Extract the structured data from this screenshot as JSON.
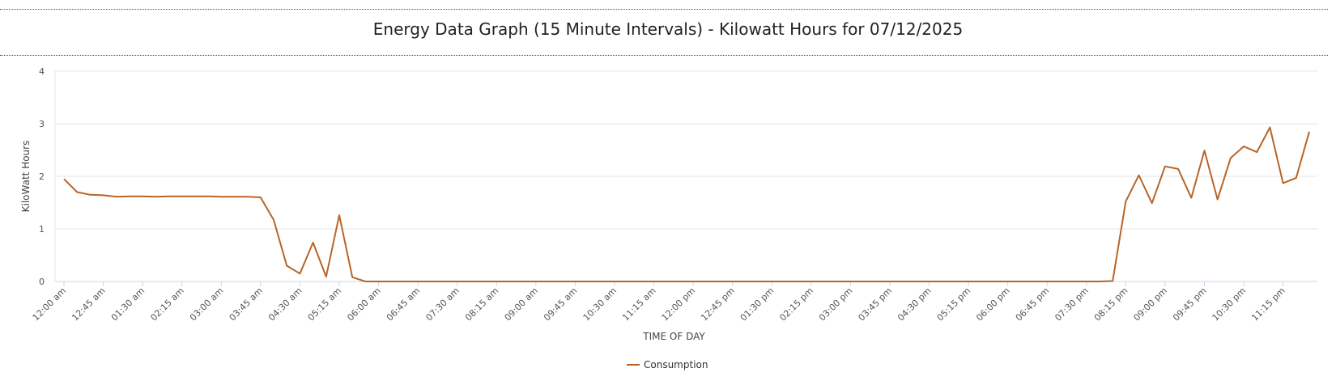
{
  "chart_data": {
    "type": "line",
    "title": "Energy Data Graph (15 Minute Intervals) - Kilowatt Hours for 07/12/2025",
    "xlabel": "TIME OF DAY",
    "ylabel": "KiloWatt Hours",
    "ylim": [
      0,
      4
    ],
    "yticks": [
      0,
      1,
      2,
      3,
      4
    ],
    "grid": true,
    "legend_position": "bottom",
    "color": "#B86428",
    "x_tick_labels": [
      "12:00 am",
      "12:45 am",
      "01:30 am",
      "02:15 am",
      "03:00 am",
      "03:45 am",
      "04:30 am",
      "05:15 am",
      "06:00 am",
      "06:45 am",
      "07:30 am",
      "08:15 am",
      "09:00 am",
      "09:45 am",
      "10:30 am",
      "11:15 am",
      "12:00 pm",
      "12:45 pm",
      "01:30 pm",
      "02:15 pm",
      "03:00 pm",
      "03:45 pm",
      "04:30 pm",
      "05:15 pm",
      "06:00 pm",
      "06:45 pm",
      "07:30 pm",
      "08:15 pm",
      "09:00 pm",
      "09:45 pm",
      "10:30 pm",
      "11:15 pm"
    ],
    "series": [
      {
        "name": "Consumption",
        "values": [
          1.95,
          1.7,
          1.65,
          1.64,
          1.61,
          1.62,
          1.62,
          1.61,
          1.62,
          1.62,
          1.62,
          1.62,
          1.61,
          1.61,
          1.61,
          1.6,
          1.17,
          0.3,
          0.15,
          0.74,
          0.09,
          1.26,
          0.08,
          0.0,
          0.0,
          0.0,
          0.0,
          0.0,
          0.0,
          0.0,
          0.0,
          0.0,
          0.0,
          0.0,
          0.0,
          0.0,
          0.0,
          0.0,
          0.0,
          0.0,
          0.0,
          0.0,
          0.0,
          0.0,
          0.0,
          0.0,
          0.0,
          0.0,
          0.0,
          0.0,
          0.0,
          0.0,
          0.0,
          0.0,
          0.0,
          0.0,
          0.0,
          0.0,
          0.0,
          0.0,
          0.0,
          0.0,
          0.0,
          0.0,
          0.0,
          0.0,
          0.0,
          0.0,
          0.0,
          0.0,
          0.0,
          0.0,
          0.0,
          0.0,
          0.0,
          0.0,
          0.0,
          0.0,
          0.0,
          0.0,
          0.01,
          1.52,
          2.02,
          1.49,
          2.19,
          2.14,
          1.59,
          2.49,
          1.56,
          2.35,
          2.57,
          2.46,
          2.93,
          1.87,
          1.97,
          2.85
        ]
      }
    ]
  }
}
